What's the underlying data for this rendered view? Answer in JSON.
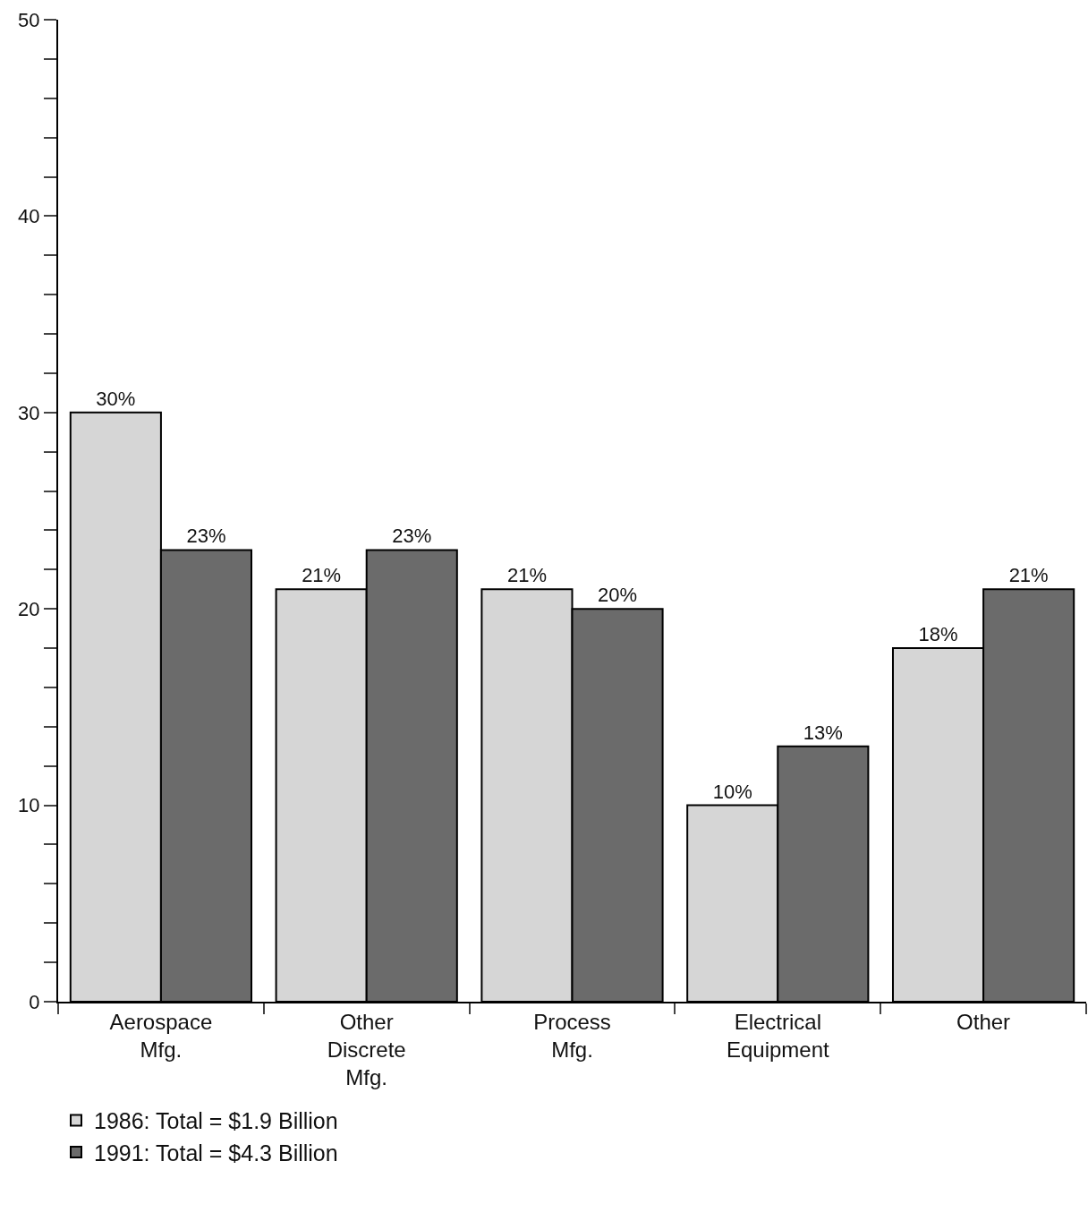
{
  "chart_data": {
    "type": "bar",
    "categories": [
      "Aerospace\nMfg.",
      "Other\nDiscrete\nMfg.",
      "Process\nMfg.",
      "Electrical\nEquipment",
      "Other"
    ],
    "series": [
      {
        "name": "1986: Total = $1.9 Billion",
        "color": "#d6d6d6",
        "values": [
          30,
          21,
          21,
          10,
          18
        ],
        "value_labels": [
          "30%",
          "21%",
          "21%",
          "10%",
          "18%"
        ]
      },
      {
        "name": "1991: Total = $4.3 Billion",
        "color": "#6b6b6b",
        "values": [
          23,
          23,
          20,
          13,
          21
        ],
        "value_labels": [
          "23%",
          "23%",
          "20%",
          "13%",
          "21%"
        ]
      }
    ],
    "ylim": [
      0,
      50
    ],
    "yticks": [
      0,
      {
        "value": 2,
        "label": null
      },
      {
        "value": 4,
        "label": null
      },
      {
        "value": 6,
        "label": null
      },
      {
        "value": 8,
        "label": null
      },
      10,
      {
        "value": 12,
        "label": null
      },
      {
        "value": 14,
        "label": null
      },
      {
        "value": 16,
        "label": null
      },
      {
        "value": 18,
        "label": null
      },
      20,
      {
        "value": 22,
        "label": null
      },
      {
        "value": 24,
        "label": null
      },
      {
        "value": 26,
        "label": null
      },
      {
        "value": 28,
        "label": null
      },
      30,
      {
        "value": 32,
        "label": null
      },
      {
        "value": 34,
        "label": null
      },
      {
        "value": 36,
        "label": null
      },
      {
        "value": 38,
        "label": null
      },
      40,
      {
        "value": 42,
        "label": null
      },
      {
        "value": 44,
        "label": null
      },
      {
        "value": 46,
        "label": null
      },
      {
        "value": 48,
        "label": null
      },
      50
    ],
    "legend": "bottom"
  }
}
